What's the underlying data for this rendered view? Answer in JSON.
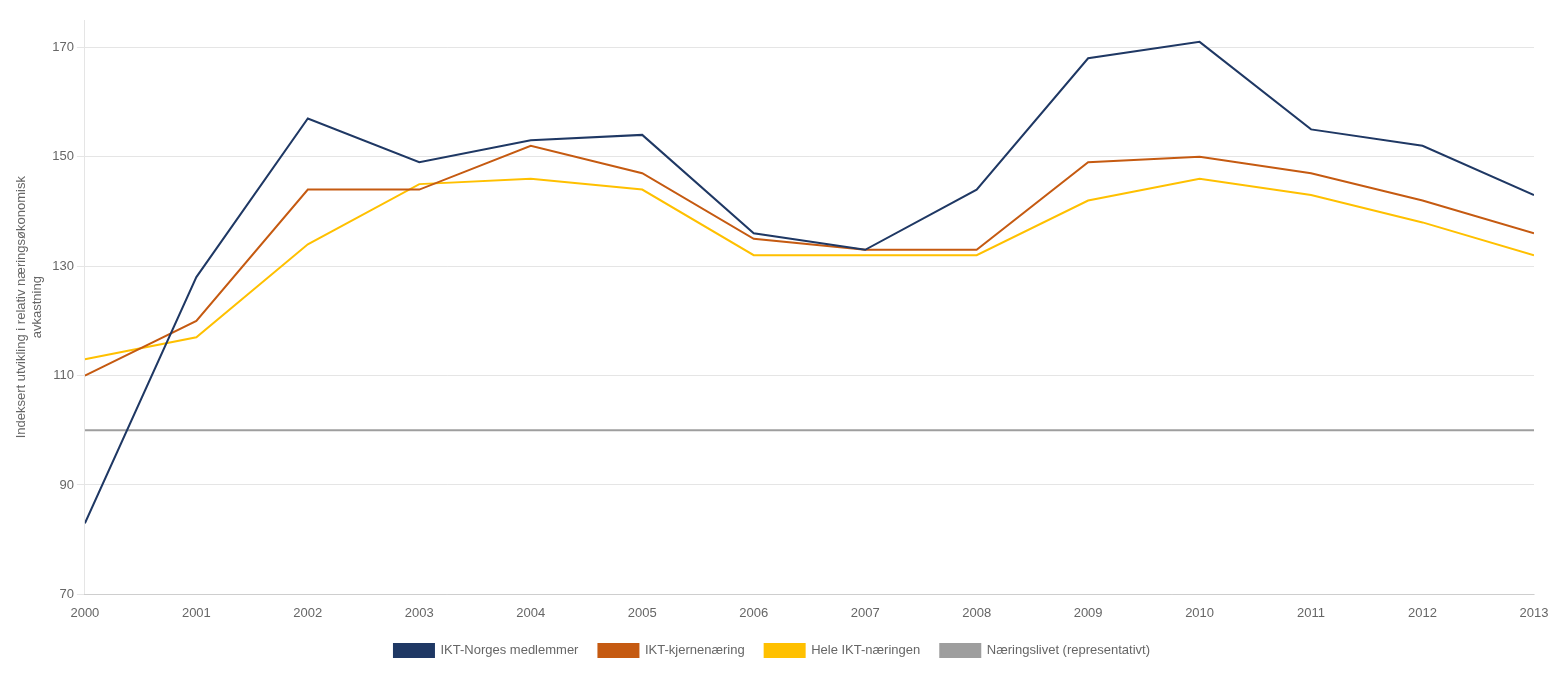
{
  "chart_data": {
    "type": "line",
    "ylabel": "Indeksert utvikling i relativ næringsøkonomisk\navkastning",
    "x": [
      2000,
      2001,
      2002,
      2003,
      2004,
      2005,
      2006,
      2007,
      2008,
      2009,
      2010,
      2011,
      2012,
      2013
    ],
    "series": [
      {
        "name": "IKT-Norges medlemmer",
        "color": "#1F3864",
        "values": [
          83,
          128,
          157,
          149,
          153,
          154,
          136,
          133,
          144,
          168,
          171,
          155,
          152,
          143
        ]
      },
      {
        "name": "IKT-kjernenæring",
        "color": "#C55A11",
        "values": [
          110,
          120,
          144,
          144,
          152,
          147,
          135,
          133,
          133,
          149,
          150,
          147,
          142,
          136
        ]
      },
      {
        "name": "Hele IKT-næringen",
        "color": "#FFC000",
        "values": [
          113,
          117,
          134,
          145,
          146,
          144,
          132,
          132,
          132,
          142,
          146,
          143,
          138,
          132
        ]
      },
      {
        "name": "Næringslivet (representativt)",
        "color": "#9E9E9E",
        "values": [
          100,
          100,
          100,
          100,
          100,
          100,
          100,
          100,
          100,
          100,
          100,
          100,
          100,
          100
        ]
      }
    ],
    "xlim": [
      2000,
      2013
    ],
    "xticks": [
      2000,
      2001,
      2002,
      2003,
      2004,
      2005,
      2006,
      2007,
      2008,
      2009,
      2010,
      2011,
      2012,
      2013
    ],
    "ylim": [
      70,
      175
    ],
    "yticks": [
      70,
      90,
      110,
      130,
      150,
      170
    ],
    "grid": true,
    "legend": "bottom"
  }
}
